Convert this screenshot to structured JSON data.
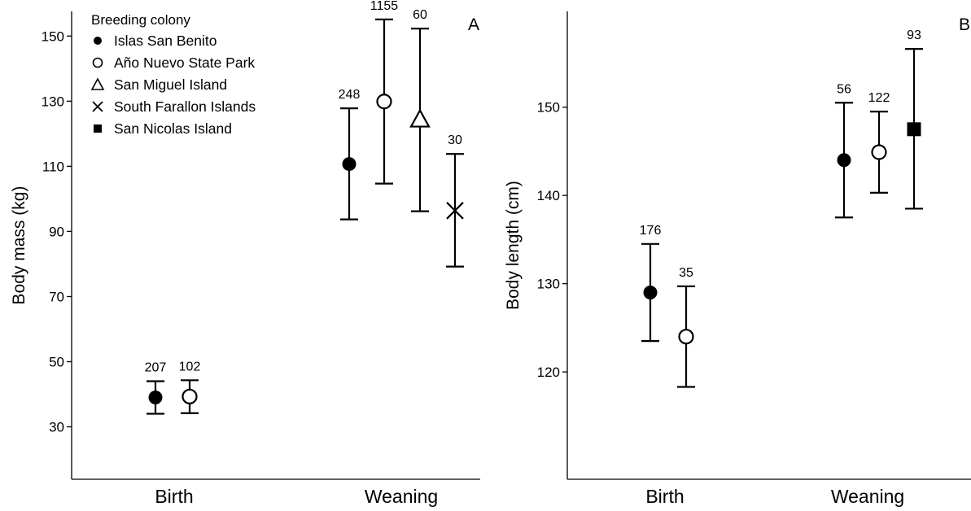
{
  "chart_data": [
    {
      "type": "scatter",
      "panel": "A",
      "ylabel": "Body mass (kg)",
      "xlabel": "",
      "categories": [
        "Birth",
        "Weaning"
      ],
      "yticks": [
        30,
        50,
        70,
        90,
        110,
        130,
        150
      ],
      "ylim": [
        23,
        167
      ],
      "grid": false,
      "legend": {
        "title": "Breeding colony",
        "placement": "top-left",
        "entries": [
          {
            "label": "Islas San Benito",
            "marker": "filled-circle"
          },
          {
            "label": "Año Nuevo State Park",
            "marker": "open-circle"
          },
          {
            "label": "San Miguel Island",
            "marker": "open-triangle"
          },
          {
            "label": "South Farallon Islands",
            "marker": "cross"
          },
          {
            "label": "San Nicolas Island",
            "marker": "filled-square"
          }
        ]
      },
      "points": [
        {
          "category": "Birth",
          "colony": "Islas San Benito",
          "marker": "filled-circle",
          "mean": 39,
          "lower": 34,
          "upper": 44,
          "n": "207"
        },
        {
          "category": "Birth",
          "colony": "Año Nuevo State Park",
          "marker": "open-circle",
          "mean": 39.3,
          "lower": 34.2,
          "upper": 44.3,
          "n": "102"
        },
        {
          "category": "Weaning",
          "colony": "Islas San Benito",
          "marker": "filled-circle",
          "mean": 110.7,
          "lower": 93.7,
          "upper": 127.8,
          "n": "248"
        },
        {
          "category": "Weaning",
          "colony": "Año Nuevo State Park",
          "marker": "open-circle",
          "mean": 129.9,
          "lower": 104.7,
          "upper": 155.1,
          "n": "1155"
        },
        {
          "category": "Weaning",
          "colony": "San Miguel Island",
          "marker": "open-triangle",
          "mean": 124.2,
          "lower": 96.2,
          "upper": 152.3,
          "n": "60"
        },
        {
          "category": "Weaning",
          "colony": "South Farallon Islands",
          "marker": "cross",
          "mean": 96.4,
          "lower": 79.2,
          "upper": 113.8,
          "n": "30"
        }
      ]
    },
    {
      "type": "scatter",
      "panel": "B",
      "ylabel": "Body length (cm)",
      "xlabel": "",
      "categories": [
        "Birth",
        "Weaning"
      ],
      "yticks": [
        120,
        130,
        140,
        150
      ],
      "ylim": [
        116.4,
        158.8
      ],
      "grid": false,
      "points": [
        {
          "category": "Birth",
          "colony": "Islas San Benito",
          "marker": "filled-circle",
          "mean": 129,
          "lower": 123.5,
          "upper": 134.5,
          "n": "176"
        },
        {
          "category": "Birth",
          "colony": "Año Nuevo State Park",
          "marker": "open-circle",
          "mean": 124,
          "lower": 118.3,
          "upper": 129.7,
          "n": "35"
        },
        {
          "category": "Weaning",
          "colony": "Islas San Benito",
          "marker": "filled-circle",
          "mean": 144,
          "lower": 137.5,
          "upper": 150.5,
          "n": "56"
        },
        {
          "category": "Weaning",
          "colony": "Año Nuevo State Park",
          "marker": "open-circle",
          "mean": 144.9,
          "lower": 140.3,
          "upper": 149.5,
          "n": "122"
        },
        {
          "category": "Weaning",
          "colony": "San Nicolas Island",
          "marker": "filled-square",
          "mean": 147.5,
          "lower": 138.5,
          "upper": 156.6,
          "n": "93"
        }
      ]
    }
  ]
}
